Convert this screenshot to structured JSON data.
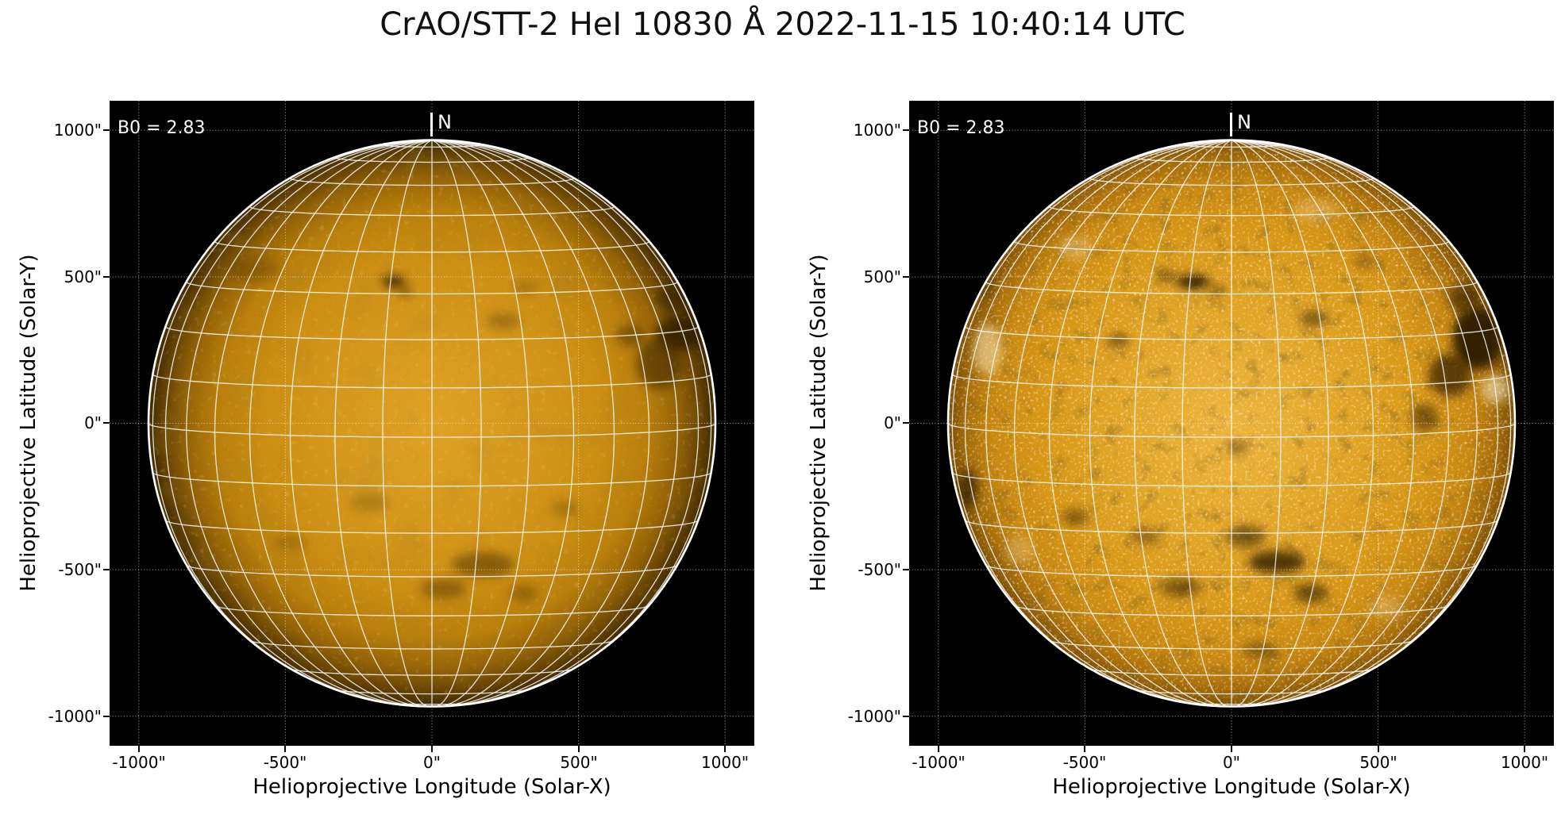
{
  "figure": {
    "title": "CrAO/STT-2 HeI 10830 Å 2022-11-15 10:40:14 UTC",
    "background": "#ffffff"
  },
  "colors": {
    "plot_background": "#000000",
    "graticule_line": "#ffffff",
    "dotted_gridline": "#ffffff",
    "annotation_text": "#ffffff",
    "axis_text": "#000000",
    "disk_center_left": "#dfa226",
    "disk_mid_left": "#cb8d12",
    "disk_limb_left": "#3f2a03",
    "disk_center_right": "#edb53e",
    "disk_mid_right": "#d89717",
    "disk_limb_right": "#7b4f06",
    "feature_dark": "#2e1f03",
    "speckle_bright": "#fff0c8"
  },
  "panels": [
    {
      "name": "left",
      "annotation_b0": "B0 = 2.83",
      "compass_north": "N",
      "xlabel": "Helioprojective Longitude (Solar-X)",
      "ylabel": "Helioprojective Latitude (Solar-Y)",
      "xticks": [
        "-1000\"",
        "-500\"",
        "0\"",
        "500\"",
        "1000\""
      ],
      "yticks": [
        "1000\"",
        "500\"",
        "0\"",
        "-500\"",
        "-1000\""
      ],
      "features_dark": [
        [
          0.88,
          -0.32,
          0.09,
          0.06,
          0.8
        ],
        [
          0.8,
          -0.21,
          0.08,
          0.09,
          0.5
        ],
        [
          0.85,
          -0.44,
          0.06,
          0.045,
          0.5
        ],
        [
          0.7,
          -0.31,
          0.05,
          0.04,
          0.4
        ],
        [
          -0.135,
          -0.5,
          0.042,
          0.02,
          0.85
        ],
        [
          -0.095,
          -0.465,
          0.025,
          0.015,
          0.5
        ],
        [
          -0.62,
          -0.54,
          0.09,
          0.04,
          0.22
        ],
        [
          0.25,
          -0.36,
          0.06,
          0.03,
          0.28
        ],
        [
          0.33,
          -0.48,
          0.04,
          0.025,
          0.22
        ],
        [
          0.18,
          0.5,
          0.11,
          0.045,
          0.42
        ],
        [
          0.04,
          0.585,
          0.08,
          0.035,
          0.38
        ],
        [
          0.32,
          0.6,
          0.05,
          0.03,
          0.3
        ],
        [
          -0.22,
          0.28,
          0.07,
          0.035,
          0.2
        ],
        [
          -0.5,
          0.42,
          0.06,
          0.03,
          0.2
        ],
        [
          0.47,
          0.3,
          0.05,
          0.03,
          0.22
        ]
      ],
      "features_bright": []
    },
    {
      "name": "right",
      "annotation_b0": "B0 = 2.83",
      "compass_north": "N",
      "xlabel": "Helioprojective Longitude (Solar-X)",
      "ylabel": "Helioprojective Latitude (Solar-Y)",
      "xticks": [
        "-1000\"",
        "-500\"",
        "0\"",
        "500\"",
        "1000\""
      ],
      "yticks": [
        "1000\"",
        "500\"",
        "0\"",
        "-500\"",
        "-1000\""
      ],
      "features_dark": [
        [
          0.87,
          -0.3,
          0.09,
          0.11,
          0.95
        ],
        [
          0.77,
          -0.17,
          0.075,
          0.075,
          0.7
        ],
        [
          0.82,
          -0.44,
          0.055,
          0.05,
          0.6
        ],
        [
          0.68,
          -0.02,
          0.05,
          0.05,
          0.5
        ],
        [
          0.9,
          -0.52,
          0.04,
          0.035,
          0.5
        ],
        [
          -0.135,
          -0.5,
          0.06,
          0.025,
          0.9
        ],
        [
          -0.23,
          -0.52,
          0.035,
          0.018,
          0.6
        ],
        [
          -0.05,
          -0.47,
          0.03,
          0.018,
          0.5
        ],
        [
          -0.4,
          -0.29,
          0.04,
          0.022,
          0.55
        ],
        [
          0.29,
          -0.37,
          0.05,
          0.03,
          0.5
        ],
        [
          0.47,
          -0.57,
          0.035,
          0.02,
          0.4
        ],
        [
          0.05,
          0.4,
          0.07,
          0.04,
          0.55
        ],
        [
          0.16,
          0.49,
          0.1,
          0.04,
          0.8
        ],
        [
          0.28,
          0.6,
          0.06,
          0.035,
          0.6
        ],
        [
          -0.18,
          0.58,
          0.07,
          0.035,
          0.5
        ],
        [
          -0.3,
          0.4,
          0.05,
          0.03,
          0.4
        ],
        [
          0.02,
          0.09,
          0.04,
          0.025,
          0.35
        ],
        [
          -0.55,
          0.33,
          0.05,
          0.03,
          0.45
        ],
        [
          -0.93,
          0.23,
          0.035,
          0.07,
          0.7
        ],
        [
          -0.88,
          -0.5,
          0.04,
          0.05,
          0.35
        ],
        [
          0.1,
          0.8,
          0.06,
          0.03,
          0.4
        ]
      ],
      "features_bright": [
        [
          0.93,
          -0.12,
          0.05,
          0.05,
          0.55
        ],
        [
          -0.86,
          -0.26,
          0.05,
          0.09,
          0.5
        ],
        [
          -0.55,
          -0.62,
          0.06,
          0.04,
          0.3
        ],
        [
          0.55,
          0.65,
          0.06,
          0.04,
          0.25
        ],
        [
          -0.75,
          0.45,
          0.05,
          0.05,
          0.25
        ],
        [
          0.3,
          -0.75,
          0.08,
          0.04,
          0.25
        ]
      ]
    }
  ],
  "chart_data": [
    {
      "type": "heatmap",
      "panel": "left",
      "description": "Full-disk solar filtergram in He I 10830 Å, low-contrast display: smooth orange disk with limb darkening, white heliographic graticule every 10 degrees, white limb circle, dark absorption features",
      "title": "CrAO/STT-2 HeI 10830 Å 2022-11-15 10:40:14 UTC",
      "xlabel": "Helioprojective Longitude (Solar-X)",
      "ylabel": "Helioprojective Latitude (Solar-Y)",
      "xlim": [
        -1100,
        1100
      ],
      "ylim": [
        -1100,
        1100
      ],
      "xticks_arcsec": [
        -1000,
        -500,
        0,
        500,
        1000
      ],
      "yticks_arcsec": [
        -1000,
        -500,
        0,
        500,
        1000
      ],
      "grid": "white dotted figure gridlines every 500 arcsec; solar heliographic graticule every 10 degrees",
      "annotations": [
        "B0 = 2.83",
        "N marker at disk north (top center)"
      ],
      "disk_radius_arcsec_approx": 970,
      "notable_features": [
        "large dark active-region cluster near right limb around (845\", 300\")",
        "small dark spot near (-130\", 485\")",
        "faint dark filament channels in lower (southern) disk around (170\", -490\")"
      ]
    },
    {
      "type": "heatmap",
      "panel": "right",
      "description": "Same full-disk He I 10830 Å image in high-contrast / unsharp-masked display: strongly speckled bright-orange disk, enhanced dark filaments and active regions, white graticule every 10 degrees",
      "title": "CrAO/STT-2 HeI 10830 Å 2022-11-15 10:40:14 UTC",
      "xlabel": "Helioprojective Longitude (Solar-X)",
      "ylabel": "Helioprojective Latitude (Solar-Y)",
      "xlim": [
        -1100,
        1100
      ],
      "ylim": [
        -1100,
        1100
      ],
      "xticks_arcsec": [
        -1000,
        -500,
        0,
        500,
        1000
      ],
      "yticks_arcsec": [
        -1000,
        -500,
        0,
        500,
        1000
      ],
      "grid": "white dotted figure gridlines every 500 arcsec; solar heliographic graticule every 10 degrees",
      "annotations": [
        "B0 = 2.83",
        "N marker at disk north (top center)"
      ],
      "disk_radius_arcsec_approx": 970,
      "notable_features": [
        "prominent dark active-region complex near right limb around (845\", 300\")",
        "dark spot cluster near (-130\", 485\")",
        "dark filament network in lower-center disk around (160\", -480\")",
        "bright plage speckles near both limbs"
      ]
    }
  ]
}
